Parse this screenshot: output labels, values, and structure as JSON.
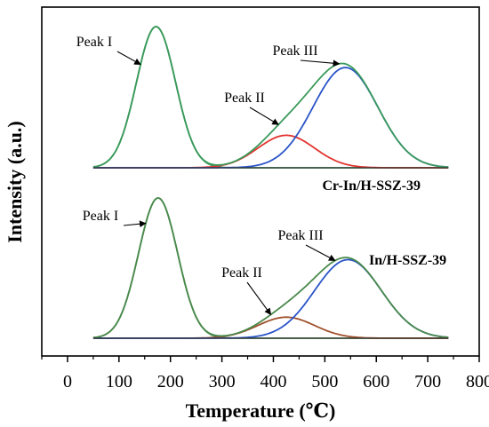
{
  "chart_data": {
    "type": "line",
    "xlabel": "Temperature (℃)",
    "ylabel": "Intensity (a.u.)",
    "xlim": [
      -50,
      800
    ],
    "xticks": [
      "0",
      "100",
      "200",
      "300",
      "400",
      "500",
      "600",
      "700",
      "800"
    ],
    "grid": false,
    "panels": [
      {
        "sample": "Cr-In/H-SSZ-39",
        "position": "top",
        "x_range": [
          50,
          740
        ],
        "series": [
          {
            "role": "peak_i",
            "color": "#3a9a5b",
            "center": 172,
            "sigma": 38,
            "amp": 1.0
          },
          {
            "role": "peak_ii",
            "color": "#e2342f",
            "center": 425,
            "sigma": 55,
            "amp": 0.23
          },
          {
            "role": "peak_iii",
            "color": "#2a55c8",
            "center": 540,
            "sigma": 63,
            "amp": 0.71
          },
          {
            "role": "envelope",
            "color": "#3a9a5b"
          },
          {
            "role": "baseline",
            "color": "#333333"
          }
        ],
        "annotations": [
          {
            "text": "Peak I",
            "target": "peak_i",
            "target_x": 142
          },
          {
            "text": "Peak II",
            "target": "peak_ii",
            "target_x": 410
          },
          {
            "text": "Peak III",
            "target": "peak_iii",
            "target_x": 528
          }
        ]
      },
      {
        "sample": "In/H-SSZ-39",
        "position": "bottom",
        "x_range": [
          50,
          740
        ],
        "series": [
          {
            "role": "peak_i",
            "color": "#4a8a4c",
            "center": 176,
            "sigma": 38,
            "amp": 1.0
          },
          {
            "role": "peak_ii",
            "color": "#a0522d",
            "center": 425,
            "sigma": 55,
            "amp": 0.15
          },
          {
            "role": "peak_iii",
            "color": "#2a55c8",
            "center": 545,
            "sigma": 65,
            "amp": 0.56
          },
          {
            "role": "envelope",
            "color": "#4a8a4c"
          },
          {
            "role": "baseline",
            "color": "#333333"
          }
        ],
        "annotations": [
          {
            "text": "Peak I",
            "target": "peak_i",
            "target_x": 152
          },
          {
            "text": "Peak II",
            "target": "peak_ii",
            "target_x": 395
          },
          {
            "text": "Peak III",
            "target": "peak_iii",
            "target_x": 520
          }
        ]
      }
    ]
  }
}
